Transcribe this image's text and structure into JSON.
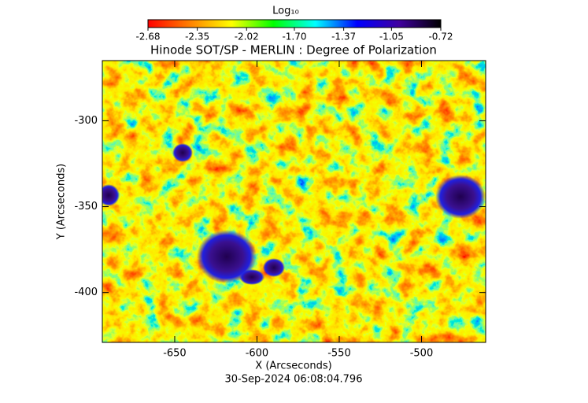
{
  "chart_data": {
    "type": "image",
    "title": "Hinode SOT/SP - MERLIN : Degree of Polarization",
    "xlabel": "X (Arcseconds)",
    "ylabel": "Y (Arcseconds)",
    "annotation": "30-Sep-2024 06:08:04.796",
    "xlim": [
      -694,
      -461
    ],
    "xticks": [
      -650,
      -600,
      -550,
      -500
    ],
    "ylim": [
      -429,
      -265
    ],
    "yticks": [
      -400,
      -350,
      -300
    ],
    "colorbar": {
      "label": "Log₁₀",
      "lim": [
        -2.68,
        -0.72
      ],
      "ticks": [
        -2.68,
        -2.35,
        -2.02,
        {
          "value": -1.7,
          "label": "-1.70"
        },
        -1.37,
        -1.05,
        -0.72
      ],
      "colors": [
        "#ff0000",
        "#ff8000",
        "#ffff00",
        "#00ff00",
        "#00ffff",
        "#0000ff",
        "#4000a0",
        "#000000"
      ]
    }
  }
}
